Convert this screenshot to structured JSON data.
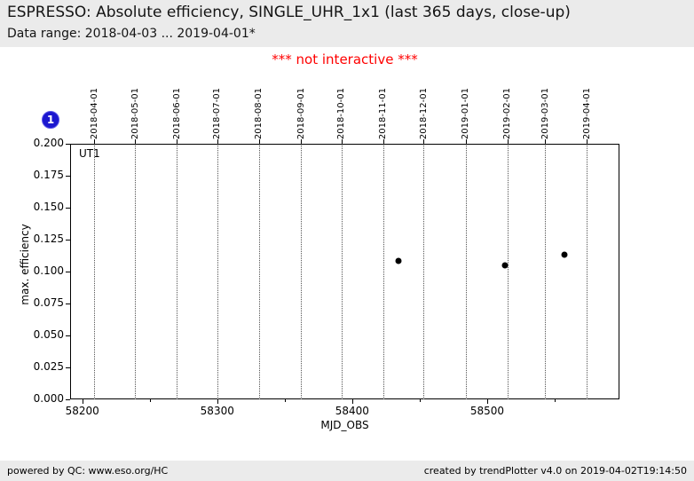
{
  "header": {
    "title": "ESPRESSO: Absolute efficiency, SINGLE_UHR_1x1 (last 365 days, close-up)",
    "subtitle": "Data range: 2018-04-03 ... 2019-04-01*"
  },
  "notice": "*** not interactive ***",
  "badge": {
    "label": "1",
    "color": "#1b17cf"
  },
  "colors": {
    "header_bg": "#ebebeb",
    "footer_bg": "#ebebeb",
    "notice_red": "#ff0000",
    "badge_blue": "#1b17cf",
    "point_black": "#000000"
  },
  "chart_data": {
    "type": "scatter",
    "title": "",
    "xlabel": "MJD_OBS",
    "ylabel": "max. efficiency",
    "inset_label": "UT1",
    "xlim": [
      58191,
      58598
    ],
    "ylim": [
      0.0,
      0.2
    ],
    "grid": {
      "orientation": "vertical",
      "style": "dotted",
      "at": "month-boundaries"
    },
    "legend": null,
    "x_major_ticks": [
      {
        "value": 58200,
        "label": "58200"
      },
      {
        "value": 58300,
        "label": "58300"
      },
      {
        "value": 58400,
        "label": "58400"
      },
      {
        "value": 58500,
        "label": "58500"
      }
    ],
    "x_minor_ticks": [
      58250,
      58350,
      58450,
      58550
    ],
    "y_ticks": [
      {
        "value": 0.0,
        "label": "0.000"
      },
      {
        "value": 0.025,
        "label": "0.025"
      },
      {
        "value": 0.05,
        "label": "0.050"
      },
      {
        "value": 0.075,
        "label": "0.075"
      },
      {
        "value": 0.1,
        "label": "0.100"
      },
      {
        "value": 0.125,
        "label": "0.125"
      },
      {
        "value": 0.15,
        "label": "0.150"
      },
      {
        "value": 0.175,
        "label": "0.175"
      },
      {
        "value": 0.2,
        "label": "0.200"
      }
    ],
    "top_axis_dates": [
      {
        "label": "2018-04-01",
        "mjd": 58209
      },
      {
        "label": "2018-05-01",
        "mjd": 58239
      },
      {
        "label": "2018-06-01",
        "mjd": 58270
      },
      {
        "label": "2018-07-01",
        "mjd": 58300
      },
      {
        "label": "2018-08-01",
        "mjd": 58331
      },
      {
        "label": "2018-09-01",
        "mjd": 58362
      },
      {
        "label": "2018-10-01",
        "mjd": 58392
      },
      {
        "label": "2018-11-01",
        "mjd": 58423
      },
      {
        "label": "2018-12-01",
        "mjd": 58453
      },
      {
        "label": "2019-01-01",
        "mjd": 58484
      },
      {
        "label": "2019-02-01",
        "mjd": 58515
      },
      {
        "label": "2019-03-01",
        "mjd": 58543
      },
      {
        "label": "2019-04-01",
        "mjd": 58574
      }
    ],
    "series": [
      {
        "name": "UT1",
        "marker": "circle",
        "color": "#000000",
        "points": [
          [
            58434,
            0.108
          ],
          [
            58513,
            0.105
          ],
          [
            58557,
            0.113
          ]
        ]
      }
    ]
  },
  "footer": {
    "left": "powered by QC: www.eso.org/HC",
    "right": "created by trendPlotter v4.0 on 2019-04-02T19:14:50"
  }
}
